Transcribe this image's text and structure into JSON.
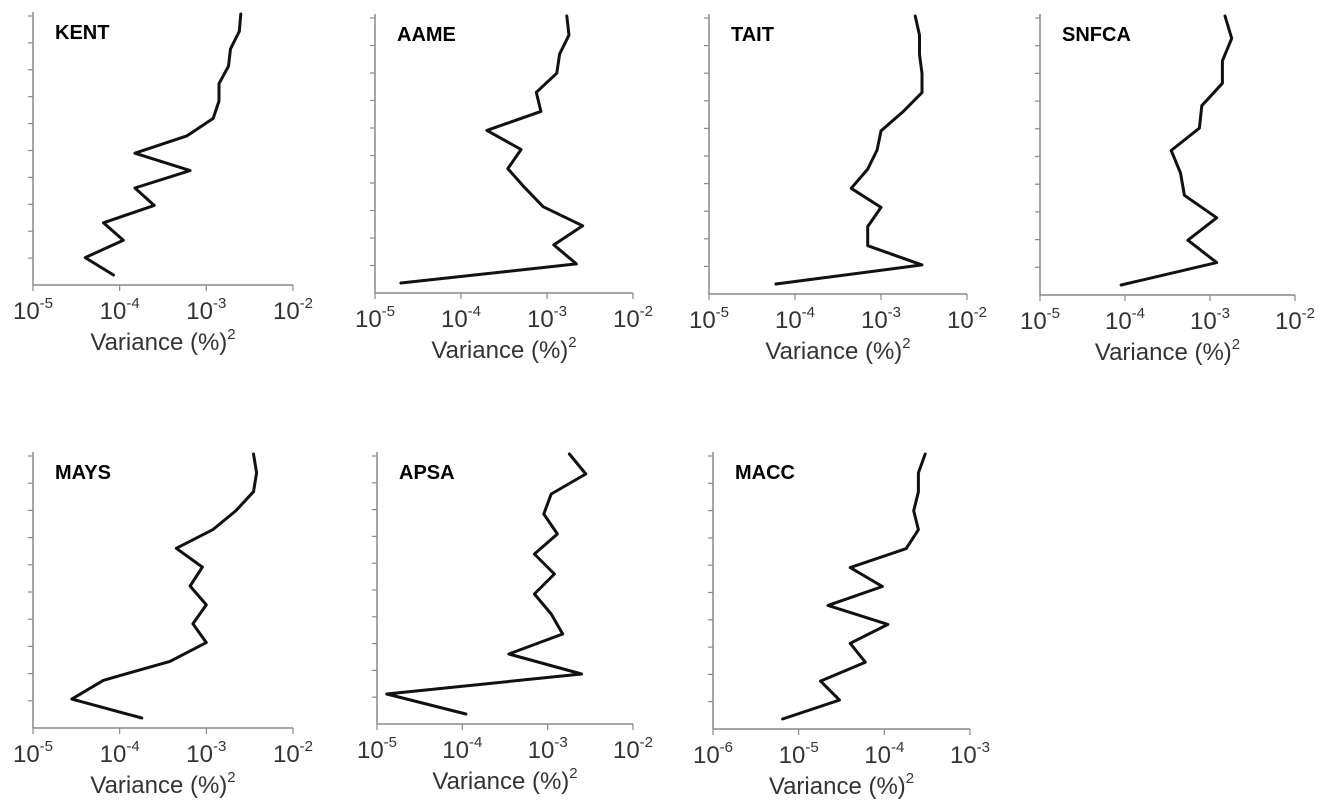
{
  "chart_data": [
    {
      "type": "line",
      "title": "KENT",
      "xlabel": "Variance (%)",
      "xlabel_sup": "2",
      "xscale": "log",
      "xlim": [
        1e-05,
        0.01
      ],
      "xticks": [
        {
          "base": "10",
          "exp": "-5"
        },
        {
          "base": "10",
          "exp": "-4"
        },
        {
          "base": "10",
          "exp": "-3"
        },
        {
          "base": "10",
          "exp": "-2"
        }
      ],
      "y_levels": 10,
      "values": [
        8.5e-05,
        4e-05,
        0.00011,
        6.5e-05,
        0.00025,
        0.00015,
        0.00065,
        0.00015,
        0.0006,
        0.0012,
        0.0014,
        0.0014,
        0.0018,
        0.0019,
        0.0024,
        0.0025
      ]
    },
    {
      "type": "line",
      "title": "AAME",
      "xlabel": "Variance (%)",
      "xlabel_sup": "2",
      "xscale": "log",
      "xlim": [
        1e-05,
        0.01
      ],
      "xticks": [
        {
          "base": "10",
          "exp": "-5"
        },
        {
          "base": "10",
          "exp": "-4"
        },
        {
          "base": "10",
          "exp": "-3"
        },
        {
          "base": "10",
          "exp": "-2"
        }
      ],
      "y_levels": 10,
      "values": [
        2e-05,
        0.0022,
        0.0012,
        0.0026,
        0.0009,
        0.00055,
        0.00035,
        0.0005,
        0.0002,
        0.00085,
        0.00075,
        0.0013,
        0.0014,
        0.0018,
        0.0017
      ]
    },
    {
      "type": "line",
      "title": "TAIT",
      "xlabel": "Variance (%)",
      "xlabel_sup": "2",
      "xscale": "log",
      "xlim": [
        1e-05,
        0.01
      ],
      "xticks": [
        {
          "base": "10",
          "exp": "-5"
        },
        {
          "base": "10",
          "exp": "-4"
        },
        {
          "base": "10",
          "exp": "-3"
        },
        {
          "base": "10",
          "exp": "-2"
        }
      ],
      "y_levels": 10,
      "values": [
        6e-05,
        0.003,
        0.0007,
        0.0007,
        0.001,
        0.00045,
        0.0007,
        0.0009,
        0.001,
        0.0018,
        0.003,
        0.003,
        0.0028,
        0.0028,
        0.0025
      ]
    },
    {
      "type": "line",
      "title": "SNFCA",
      "xlabel": "Variance (%)",
      "xlabel_sup": "2",
      "xscale": "log",
      "xlim": [
        1e-05,
        0.01
      ],
      "xticks": [
        {
          "base": "10",
          "exp": "-5"
        },
        {
          "base": "10",
          "exp": "-4"
        },
        {
          "base": "10",
          "exp": "-3"
        },
        {
          "base": "10",
          "exp": "-2"
        }
      ],
      "y_levels": 10,
      "values": [
        9e-05,
        0.0012,
        0.00055,
        0.0012,
        0.0005,
        0.00045,
        0.00035,
        0.00075,
        0.0008,
        0.0014,
        0.0014,
        0.0018,
        0.0015
      ]
    },
    {
      "type": "line",
      "title": "MAYS",
      "xlabel": "Variance (%)",
      "xlabel_sup": "2",
      "xscale": "log",
      "xlim": [
        1e-05,
        0.01
      ],
      "xticks": [
        {
          "base": "10",
          "exp": "-5"
        },
        {
          "base": "10",
          "exp": "-4"
        },
        {
          "base": "10",
          "exp": "-3"
        },
        {
          "base": "10",
          "exp": "-2"
        }
      ],
      "y_levels": 10,
      "values": [
        0.00018,
        2.8e-05,
        6.5e-05,
        0.00038,
        0.001,
        0.0007,
        0.001,
        0.00065,
        0.0009,
        0.00045,
        0.0012,
        0.0022,
        0.0035,
        0.0038,
        0.0035
      ]
    },
    {
      "type": "line",
      "title": "APSA",
      "xlabel": "Variance (%)",
      "xlabel_sup": "2",
      "xscale": "log",
      "xlim": [
        1e-05,
        0.01
      ],
      "xticks": [
        {
          "base": "10",
          "exp": "-5"
        },
        {
          "base": "10",
          "exp": "-4"
        },
        {
          "base": "10",
          "exp": "-3"
        },
        {
          "base": "10",
          "exp": "-2"
        }
      ],
      "y_levels": 10,
      "values": [
        0.00011,
        1.3e-05,
        0.0025,
        0.00035,
        0.0015,
        0.0011,
        0.0007,
        0.0012,
        0.0007,
        0.0013,
        0.0009,
        0.0011,
        0.0028,
        0.0018
      ]
    },
    {
      "type": "line",
      "title": "MACC",
      "xlabel": "Variance (%)",
      "xlabel_sup": "2",
      "xscale": "log",
      "xlim": [
        1e-06,
        0.001
      ],
      "xticks": [
        {
          "base": "10",
          "exp": "-6"
        },
        {
          "base": "10",
          "exp": "-5"
        },
        {
          "base": "10",
          "exp": "-4"
        },
        {
          "base": "10",
          "exp": "-3"
        }
      ],
      "y_levels": 10,
      "values": [
        6.5e-06,
        3e-05,
        1.8e-05,
        6e-05,
        4e-05,
        0.00011,
        2.2e-05,
        9.5e-05,
        4e-05,
        0.00018,
        0.00025,
        0.00022,
        0.00025,
        0.00025,
        0.0003
      ]
    }
  ]
}
